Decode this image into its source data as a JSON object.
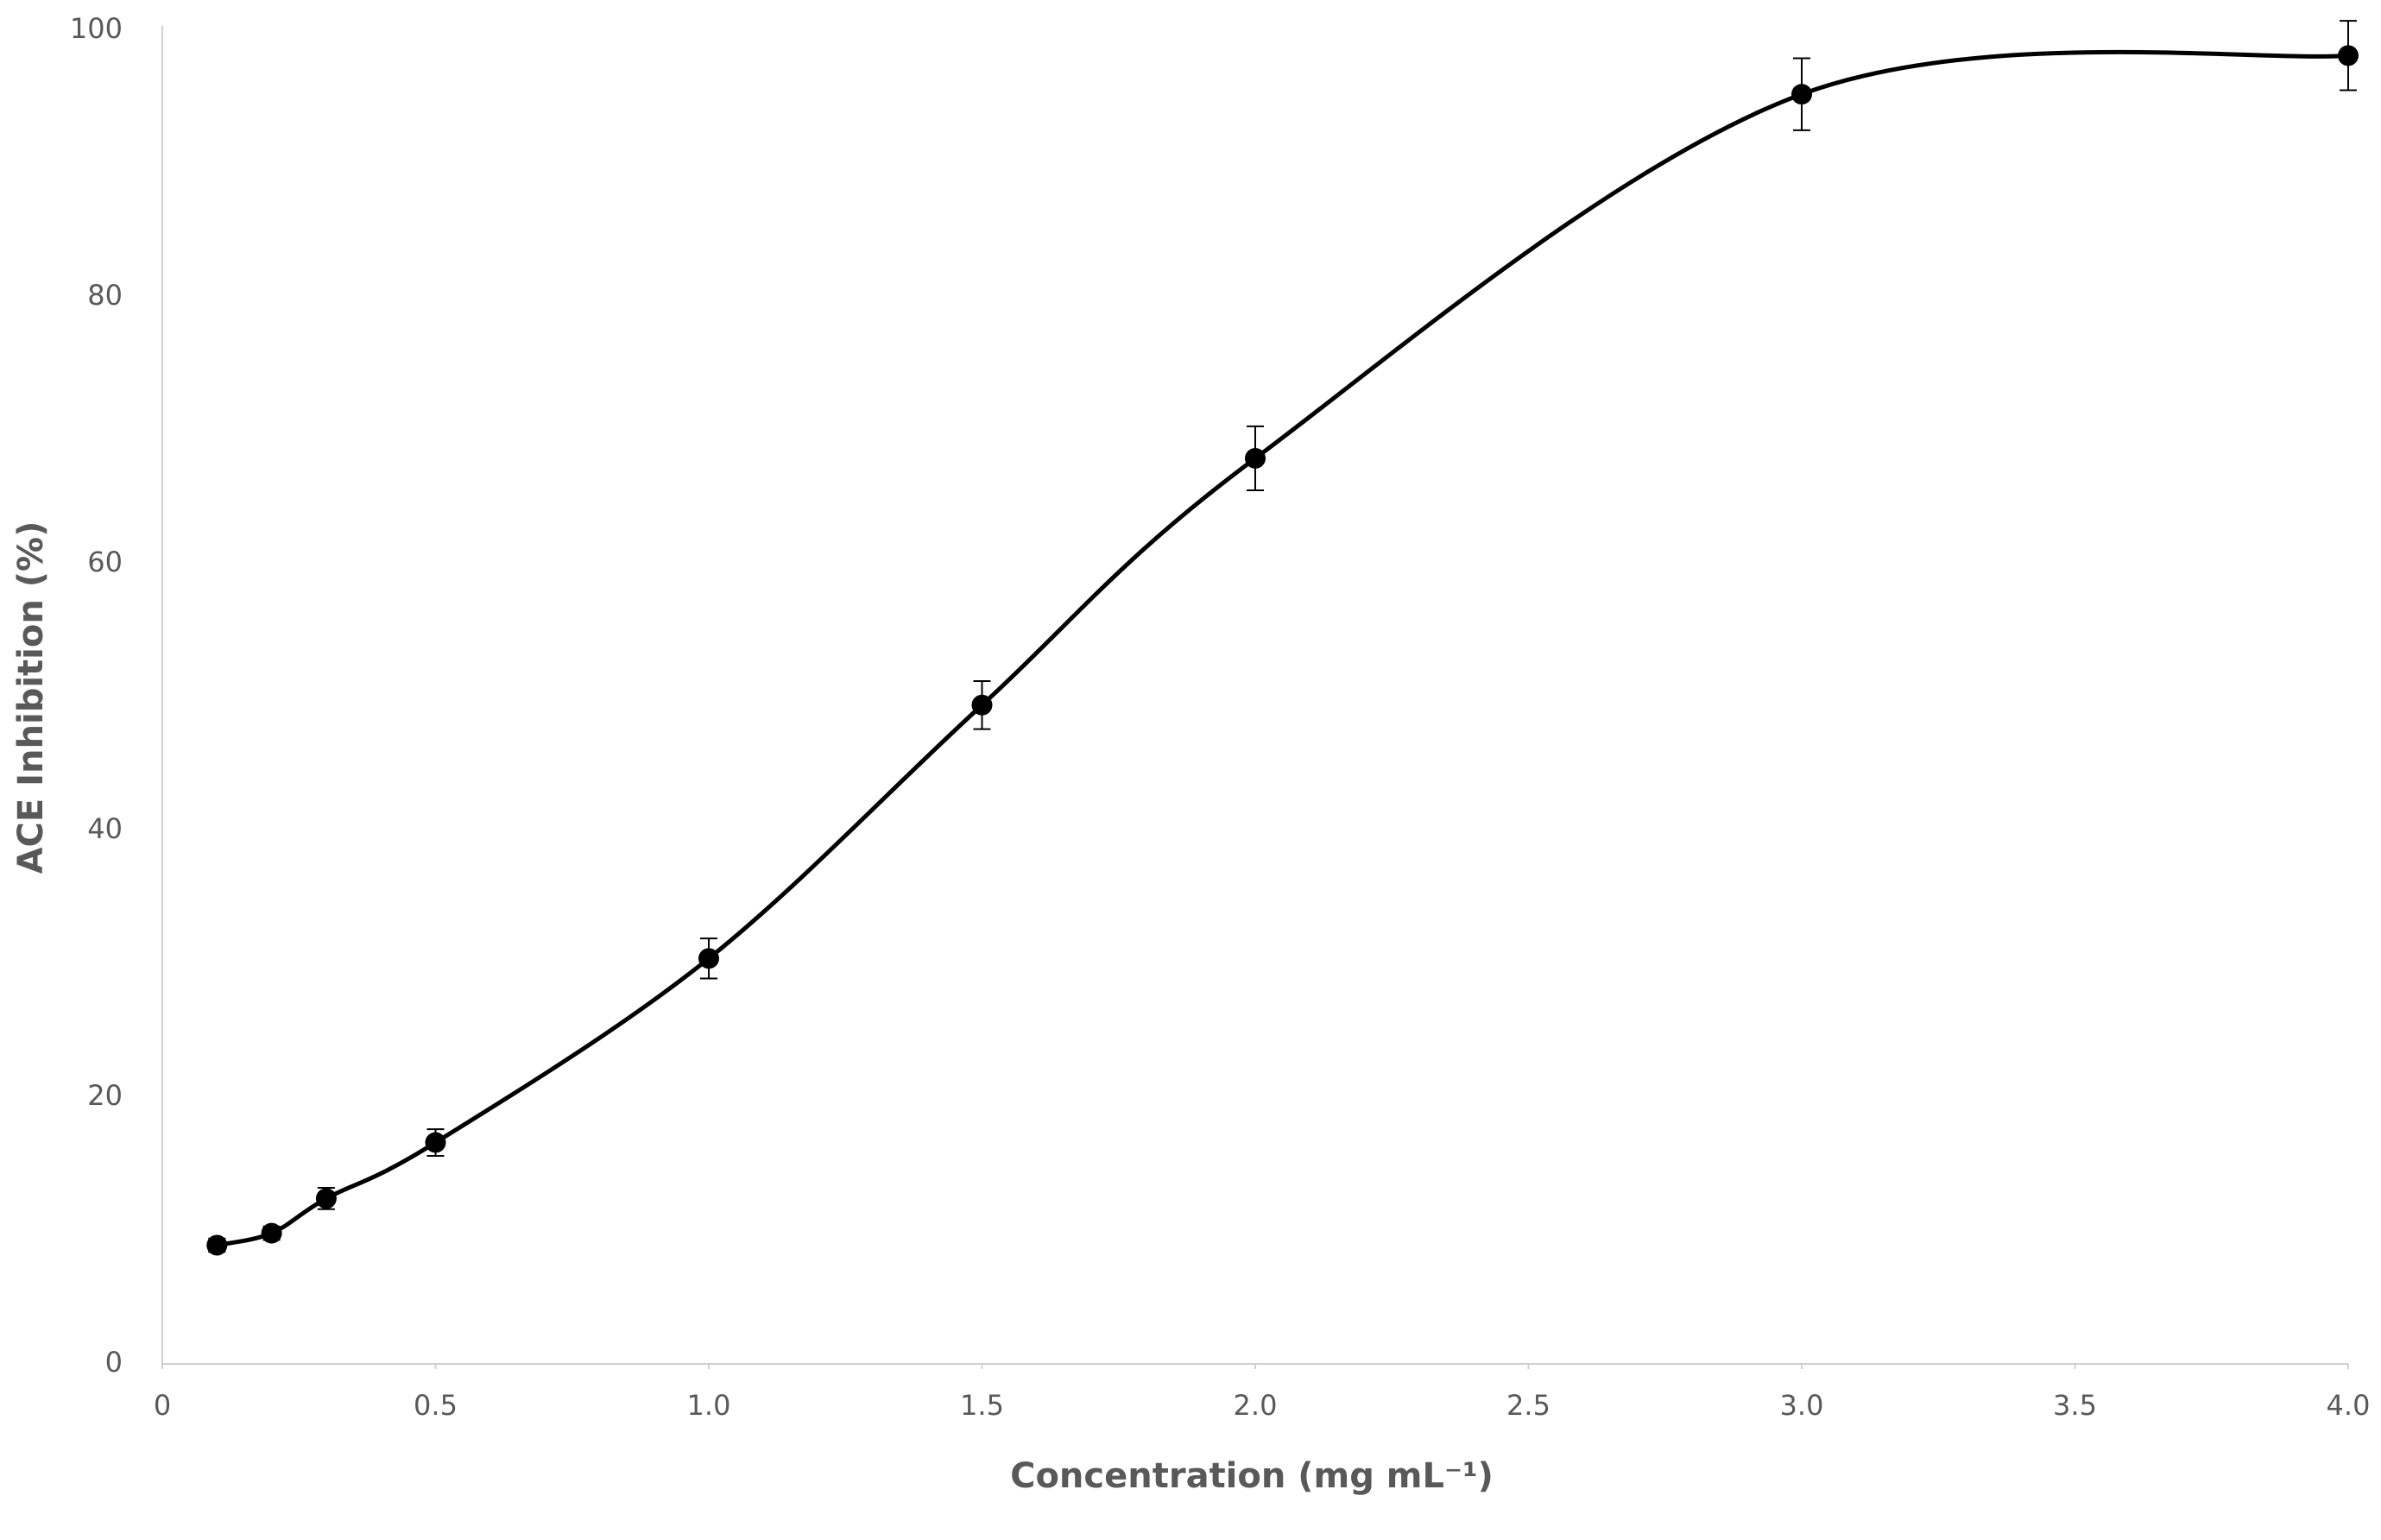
{
  "chart_data": {
    "type": "line",
    "x_label": "Concentration (mg mL⁻¹)",
    "y_label": "ACE Inhibition (%)",
    "x": [
      0.1,
      0.2,
      0.3,
      0.5,
      1.0,
      1.5,
      2.0,
      3.0,
      4.0
    ],
    "series": [
      {
        "color": "#000000",
        "values": [
          8.9,
          9.8,
          12.4,
          16.6,
          30.4,
          49.4,
          67.9,
          95.2,
          98.1
        ],
        "errors": [
          0.5,
          0.5,
          0.8,
          1.0,
          1.5,
          1.8,
          2.4,
          2.7,
          2.6
        ]
      }
    ],
    "xlim": [
      0,
      4
    ],
    "xticks": [
      0,
      {
        "value": 0.5,
        "label": "0.5"
      },
      {
        "value": 1,
        "label": "1.0"
      },
      {
        "value": 1.5,
        "label": "1.5"
      },
      {
        "value": 2,
        "label": "2.0"
      },
      {
        "value": 2.5,
        "label": "2.5"
      },
      {
        "value": 3,
        "label": "3.0"
      },
      {
        "value": 3.5,
        "label": "3.5"
      },
      {
        "value": 4,
        "label": "4.0"
      }
    ],
    "ylim": [
      0,
      100
    ],
    "yticks": [
      0,
      20,
      40,
      60,
      80,
      100
    ],
    "grid": false
  }
}
